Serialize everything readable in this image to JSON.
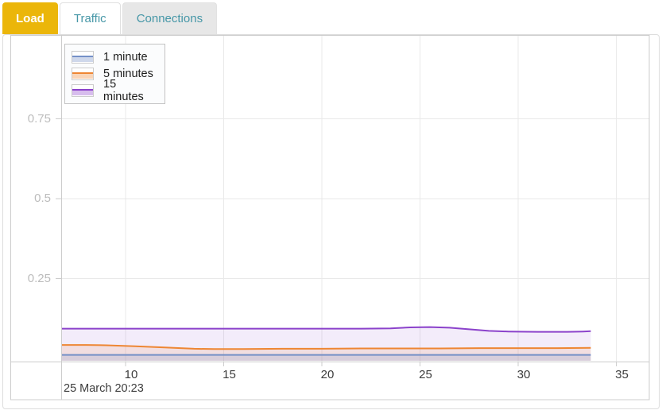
{
  "tabs": {
    "items": [
      {
        "label": "Load",
        "active": true
      },
      {
        "label": "Traffic",
        "active": false
      },
      {
        "label": "Connections",
        "active": false
      }
    ]
  },
  "colors": {
    "active_tab_bg": "#ebb60a",
    "active_tab_text": "#ffffff",
    "inactive_tab_text": "#4697a7",
    "inactive_tab_gray_bg": "#e7e7e7",
    "panel_border": "#dddddd",
    "chart_border": "#cccccc",
    "gridline": "#e9e9e9",
    "y_tick_label": "#bcbcbc",
    "x_tick_label": "#3d3d3d",
    "series_1min": "#7590c7",
    "series_5min": "#ee8633",
    "series_15min": "#8b42cb"
  },
  "chart_data": {
    "type": "area",
    "title": "",
    "xlabel": "",
    "ylabel": "",
    "grid": true,
    "legend_position": "top-left",
    "timestamp_label": "25 March 20:23",
    "x_range": [
      6.75,
      33.7
    ],
    "y_range": [
      0,
      1.02
    ],
    "x_ticks": [
      {
        "v": 10,
        "label": "10"
      },
      {
        "v": 15,
        "label": "15"
      },
      {
        "v": 20,
        "label": "20"
      },
      {
        "v": 25,
        "label": "25"
      },
      {
        "v": 30,
        "label": "30"
      },
      {
        "v": 35,
        "label": "35"
      }
    ],
    "y_ticks": [
      {
        "v": 0.25,
        "label": "0.25"
      },
      {
        "v": 0.5,
        "label": "0.5"
      },
      {
        "v": 0.75,
        "label": "0.75"
      }
    ],
    "series": [
      {
        "name": "1 minute",
        "color": "#7590c7",
        "fill_opacity": 0.2,
        "points": [
          [
            6.75,
            0.011
          ],
          [
            10,
            0.011
          ],
          [
            14,
            0.011
          ],
          [
            18,
            0.011
          ],
          [
            22,
            0.011
          ],
          [
            26,
            0.011
          ],
          [
            30,
            0.011
          ],
          [
            33.7,
            0.011
          ]
        ]
      },
      {
        "name": "5 minutes",
        "color": "#ee8633",
        "fill_opacity": 0.13,
        "points": [
          [
            6.75,
            0.042
          ],
          [
            8,
            0.042
          ],
          [
            9,
            0.041
          ],
          [
            10.5,
            0.038
          ],
          [
            12,
            0.034
          ],
          [
            13.5,
            0.03
          ],
          [
            14.5,
            0.029
          ],
          [
            16,
            0.029
          ],
          [
            18,
            0.03
          ],
          [
            20,
            0.03
          ],
          [
            22,
            0.031
          ],
          [
            24,
            0.031
          ],
          [
            26,
            0.031
          ],
          [
            28,
            0.032
          ],
          [
            30,
            0.032
          ],
          [
            32,
            0.032
          ],
          [
            33.7,
            0.033
          ]
        ]
      },
      {
        "name": "15 minutes",
        "color": "#8b42cb",
        "fill_opacity": 0.1,
        "points": [
          [
            6.75,
            0.093
          ],
          [
            8,
            0.093
          ],
          [
            10,
            0.093
          ],
          [
            12,
            0.093
          ],
          [
            14,
            0.093
          ],
          [
            16,
            0.093
          ],
          [
            18,
            0.093
          ],
          [
            20,
            0.093
          ],
          [
            22,
            0.093
          ],
          [
            23.5,
            0.094
          ],
          [
            24.5,
            0.097
          ],
          [
            25.5,
            0.098
          ],
          [
            26.5,
            0.096
          ],
          [
            27.5,
            0.091
          ],
          [
            28.5,
            0.086
          ],
          [
            29.5,
            0.084
          ],
          [
            31,
            0.083
          ],
          [
            32.5,
            0.083
          ],
          [
            33.3,
            0.084
          ],
          [
            33.7,
            0.085
          ]
        ]
      }
    ]
  }
}
